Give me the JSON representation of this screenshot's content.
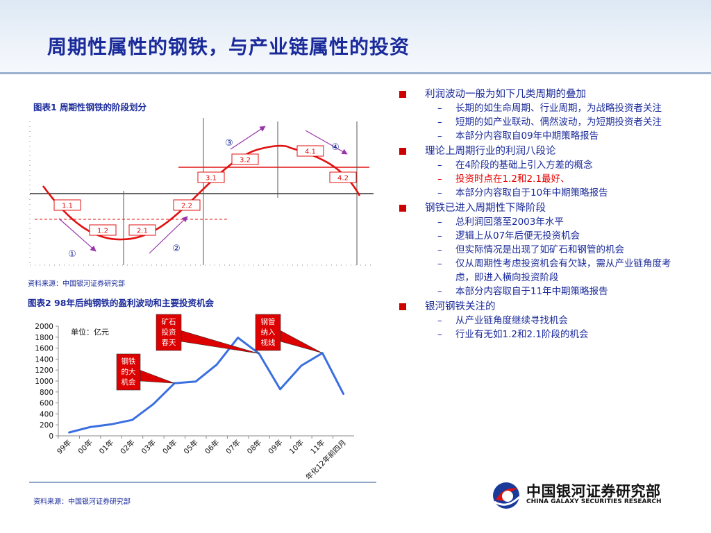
{
  "title": "周期性属性的钢铁，与产业链属性的投资",
  "left": {
    "chart1_caption": "图表1  周期性钢铁的阶段划分",
    "chart1_source": "资料来源：中国银河证券研究部",
    "chart2_caption": "图表2  98年后纯钢铁的盈利波动和主要投资机会",
    "chart2_source": "资料来源：中国银河证券研究部"
  },
  "bullets": [
    {
      "text": "利润波动一般为如下几类周期的叠加",
      "subs": [
        {
          "text": "长期的如生命周期、行业周期，为战略投资者关注",
          "color": "blue",
          "dash": "–"
        },
        {
          "text": "短期的如产业联动、偶然波动，为短期投资者关注",
          "color": "blue",
          "dash": "–"
        },
        {
          "text": "本部分内容取自09年中期策略报告",
          "color": "blue",
          "dash": "–"
        }
      ]
    },
    {
      "text": "理论上周期行业的利润八段论",
      "subs": [
        {
          "text": "在4阶段的基础上引入方差的概念",
          "color": "blue",
          "dash": "–"
        },
        {
          "text": "投资时点在1.2和2.1最好、",
          "color": "red",
          "dash": "–"
        },
        {
          "text": "本部分内容取自于10年中期策略报告",
          "color": "blue",
          "dash": "–"
        }
      ]
    },
    {
      "text": "钢铁已进入周期性下降阶段",
      "subs": [
        {
          "text": "总利润回落至2003年水平",
          "color": "blue",
          "dash": "–"
        },
        {
          "text": "逻辑上从07年后便无投资机会",
          "color": "blue",
          "dash": "–"
        },
        {
          "text": "但实际情况是出现了如矿石和钢管的机会",
          "color": "blue",
          "dash": "–"
        },
        {
          "text": "仅从周期性考虑投资机会有欠缺，需从产业链角度考虑，即进入横向投资阶段",
          "color": "blue",
          "dash": "–"
        },
        {
          "text": "本部分内容取自于11年中期策略报告",
          "color": "blue",
          "dash": "–"
        }
      ]
    },
    {
      "text": "银河钢铁关注的",
      "subs": [
        {
          "text": "从产业链角度继续寻找机会",
          "color": "blue",
          "dash": "–"
        },
        {
          "text": "行业有无如1.2和2.1阶段的机会",
          "color": "blue",
          "dash": "–"
        }
      ]
    }
  ],
  "logo": {
    "cn": "中国银河证券研究部",
    "en": "CHINA GALAXY SECURITIES RESEARCH"
  },
  "colors": {
    "title": "#1a2a9a",
    "curve": "#e01010",
    "line": "#3a6fe0",
    "callout": "#dd0000",
    "arrow": "#9933aa"
  },
  "chart_data": [
    {
      "type": "line",
      "title": "",
      "stage_labels": [
        "1.1",
        "1.2",
        "2.1",
        "2.2",
        "3.1",
        "3.2",
        "4.1",
        "4.2"
      ],
      "phase_markers": [
        "①",
        "②",
        "③",
        "④"
      ],
      "grid": false
    },
    {
      "type": "line",
      "unit_label": "单位：亿元",
      "categories": [
        "99年",
        "00年",
        "01年",
        "02年",
        "03年",
        "04年",
        "05年",
        "06年",
        "07年",
        "08年",
        "09年",
        "10年",
        "11年",
        "年化12年前四月"
      ],
      "values": [
        60,
        160,
        210,
        290,
        580,
        960,
        990,
        1300,
        1790,
        1500,
        850,
        1280,
        1510,
        760
      ],
      "ylim": [
        0,
        2000
      ],
      "yticks": [
        0,
        200,
        400,
        600,
        800,
        1000,
        1200,
        1400,
        1600,
        1800,
        2000
      ],
      "callouts": [
        {
          "text": "钢铁的大机会",
          "target": "04年"
        },
        {
          "text": "矿石投资春天",
          "target": "08年"
        },
        {
          "text": "钢管纳入视线",
          "target": "11年"
        }
      ],
      "grid": false
    }
  ]
}
